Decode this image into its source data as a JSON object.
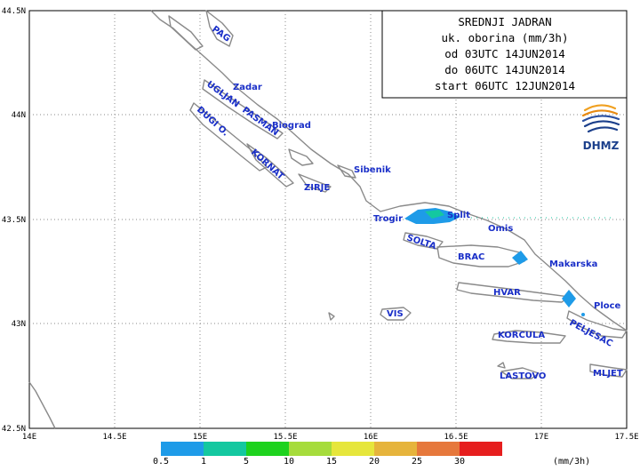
{
  "title_box": {
    "lines": [
      "SREDNJI JADRAN",
      "uk. oborina (mm/3h)",
      "od 03UTC 14JUN2014",
      "do 06UTC 14JUN2014",
      "start 06UTC 12JUN2014"
    ]
  },
  "logo": {
    "text": "DHMZ"
  },
  "axes": {
    "x_ticks": [
      "14E",
      "14.5E",
      "15E",
      "15.5E",
      "16E",
      "16.5E",
      "17E",
      "17.5E"
    ],
    "y_ticks": [
      "44.5N",
      "44N",
      "43.5N",
      "43N",
      "42.5N"
    ]
  },
  "places": [
    {
      "name": "PAG"
    },
    {
      "name": "Zadar"
    },
    {
      "name": "UGLJAN"
    },
    {
      "name": "PASMAN"
    },
    {
      "name": "Biograd"
    },
    {
      "name": "DUGI O."
    },
    {
      "name": "KORNAT"
    },
    {
      "name": "Sibenik"
    },
    {
      "name": "ZIRJE"
    },
    {
      "name": "Trogir"
    },
    {
      "name": "Split"
    },
    {
      "name": "Omis"
    },
    {
      "name": "SOLTA"
    },
    {
      "name": "BRAC"
    },
    {
      "name": "Makarska"
    },
    {
      "name": "HVAR"
    },
    {
      "name": "Ploce"
    },
    {
      "name": "VIS"
    },
    {
      "name": "PELJESAC"
    },
    {
      "name": "KORCULA"
    },
    {
      "name": "LASTOVO"
    },
    {
      "name": "MLJET"
    }
  ],
  "legend": {
    "unit": "(mm/3h)",
    "labels": [
      "0.5",
      "1",
      "5",
      "10",
      "15",
      "20",
      "25",
      "30"
    ],
    "colors": [
      "#1e9be8",
      "#14c8a0",
      "#1ed21e",
      "#a6dc3c",
      "#e6e63c",
      "#e6b43c",
      "#e6783c",
      "#e61e1e"
    ]
  }
}
